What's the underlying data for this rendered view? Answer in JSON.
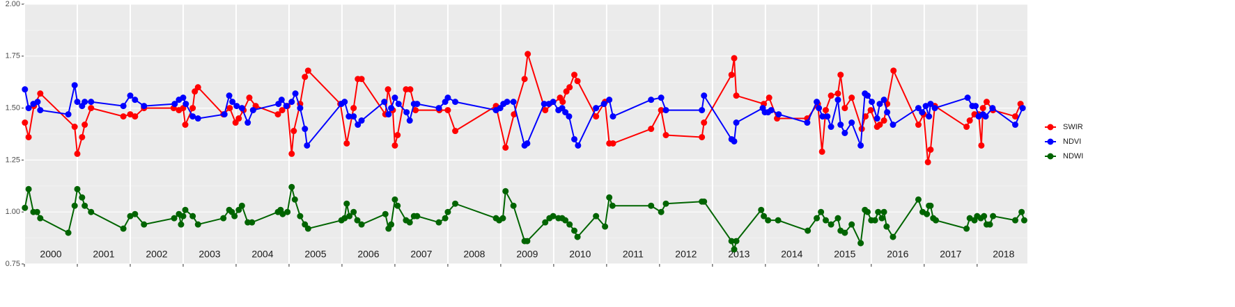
{
  "chart_data": {
    "type": "line",
    "xlim": [
      2000,
      2018.95
    ],
    "xticks": [
      2000,
      2001,
      2002,
      2003,
      2004,
      2005,
      2006,
      2007,
      2008,
      2009,
      2010,
      2011,
      2012,
      2013,
      2014,
      2015,
      2016,
      2017,
      2018
    ],
    "ylim": [
      0.75,
      2.0
    ],
    "yticks": [
      {
        "value": 0.75,
        "label": "0.75"
      },
      {
        "value": 1.0,
        "label": "1.00"
      },
      {
        "value": 1.25,
        "label": "1.25"
      },
      {
        "value": 1.5,
        "label": "1.50"
      },
      {
        "value": 1.75,
        "label": "1.75"
      },
      {
        "value": 2.0,
        "label": "2.00"
      }
    ],
    "grid": true,
    "legend": "right",
    "series": [
      {
        "name": "SWIR",
        "color": "#ff0000",
        "x": [
          2000.01,
          2000.08,
          2000.18,
          2000.3,
          2000.95,
          2001.0,
          2001.09,
          2001.14,
          2001.26,
          2001.87,
          2002.0,
          2002.09,
          2002.26,
          2002.82,
          2002.92,
          2003.0,
          2003.04,
          2003.18,
          2003.22,
          2003.28,
          2003.76,
          2003.88,
          2003.99,
          2004.05,
          2004.14,
          2004.25,
          2004.37,
          2004.79,
          2004.87,
          2004.97,
          2005.05,
          2005.09,
          2005.21,
          2005.3,
          2005.36,
          2005.97,
          2006.09,
          2006.22,
          2006.3,
          2006.37,
          2006.82,
          2006.87,
          2006.96,
          2007.0,
          2007.05,
          2007.21,
          2007.29,
          2007.39,
          2007.84,
          2008.0,
          2008.14,
          2008.91,
          2009.09,
          2009.25,
          2009.45,
          2009.51,
          2009.84,
          2010.12,
          2010.17,
          2010.24,
          2010.3,
          2010.39,
          2010.45,
          2010.8,
          2010.97,
          2011.05,
          2011.12,
          2011.84,
          2012.03,
          2012.12,
          2012.8,
          2012.84,
          2013.36,
          2013.41,
          2013.45,
          2013.97,
          2014.07,
          2014.22,
          2014.79,
          2014.99,
          2015.07,
          2015.14,
          2015.24,
          2015.37,
          2015.42,
          2015.5,
          2015.63,
          2015.82,
          2015.89,
          2015.99,
          2016.11,
          2016.16,
          2016.24,
          2016.3,
          2016.42,
          2016.89,
          2016.99,
          2017.07,
          2017.12,
          2017.2,
          2017.8,
          2017.86,
          2017.95,
          2018.03,
          2018.08,
          2018.11,
          2018.18,
          2018.3,
          2018.72,
          2018.82
        ],
        "values": [
          1.43,
          1.36,
          1.51,
          1.57,
          1.41,
          1.28,
          1.36,
          1.42,
          1.5,
          1.46,
          1.47,
          1.46,
          1.5,
          1.5,
          1.49,
          1.5,
          1.42,
          1.5,
          1.58,
          1.6,
          1.47,
          1.5,
          1.43,
          1.45,
          1.49,
          1.55,
          1.51,
          1.47,
          1.49,
          1.51,
          1.28,
          1.39,
          1.52,
          1.65,
          1.68,
          1.52,
          1.33,
          1.5,
          1.64,
          1.64,
          1.47,
          1.59,
          1.49,
          1.32,
          1.37,
          1.59,
          1.59,
          1.49,
          1.49,
          1.49,
          1.39,
          1.51,
          1.31,
          1.47,
          1.64,
          1.76,
          1.49,
          1.55,
          1.53,
          1.58,
          1.6,
          1.66,
          1.63,
          1.46,
          1.53,
          1.33,
          1.33,
          1.4,
          1.49,
          1.37,
          1.36,
          1.43,
          1.66,
          1.74,
          1.56,
          1.52,
          1.55,
          1.45,
          1.45,
          1.52,
          1.29,
          1.49,
          1.56,
          1.57,
          1.66,
          1.5,
          1.55,
          1.4,
          1.46,
          1.49,
          1.41,
          1.42,
          1.44,
          1.52,
          1.68,
          1.42,
          1.47,
          1.24,
          1.3,
          1.51,
          1.41,
          1.44,
          1.47,
          1.47,
          1.32,
          1.5,
          1.53,
          1.49,
          1.46,
          1.52
        ]
      },
      {
        "name": "NDVI",
        "color": "#0000ff",
        "x": [
          2000.01,
          2000.08,
          2000.17,
          2000.25,
          2000.3,
          2000.83,
          2000.95,
          2001.0,
          2001.09,
          2001.14,
          2001.26,
          2001.87,
          2002.0,
          2002.09,
          2002.26,
          2002.84,
          2002.92,
          2003.0,
          2003.05,
          2003.18,
          2003.28,
          2003.78,
          2003.87,
          2003.93,
          2004.01,
          2004.11,
          2004.22,
          2004.32,
          2004.8,
          2004.86,
          2004.95,
          2005.05,
          2005.12,
          2005.21,
          2005.3,
          2005.34,
          2005.99,
          2006.05,
          2006.13,
          2006.22,
          2006.3,
          2006.37,
          2006.8,
          2006.88,
          2006.93,
          2007.0,
          2007.07,
          2007.22,
          2007.28,
          2007.36,
          2007.42,
          2007.83,
          2007.95,
          2008.0,
          2008.14,
          2008.91,
          2008.99,
          2009.05,
          2009.12,
          2009.24,
          2009.45,
          2009.5,
          2009.82,
          2009.91,
          2009.99,
          2010.09,
          2010.16,
          2010.22,
          2010.29,
          2010.39,
          2010.46,
          2010.8,
          2010.95,
          2011.05,
          2011.12,
          2011.84,
          2012.03,
          2012.12,
          2012.8,
          2012.84,
          2013.36,
          2013.41,
          2013.45,
          2013.95,
          2013.99,
          2014.05,
          2014.11,
          2014.25,
          2014.79,
          2014.97,
          2015.01,
          2015.08,
          2015.17,
          2015.24,
          2015.37,
          2015.42,
          2015.5,
          2015.63,
          2015.8,
          2015.88,
          2015.93,
          2016.01,
          2016.11,
          2016.16,
          2016.24,
          2016.3,
          2016.41,
          2016.89,
          2016.96,
          2017.03,
          2017.09,
          2017.12,
          2017.2,
          2017.82,
          2017.91,
          2017.97,
          2018.03,
          2018.11,
          2018.16,
          2018.29,
          2018.72,
          2018.86
        ],
        "values": [
          1.59,
          1.5,
          1.52,
          1.53,
          1.49,
          1.47,
          1.61,
          1.53,
          1.51,
          1.53,
          1.53,
          1.51,
          1.56,
          1.54,
          1.51,
          1.52,
          1.54,
          1.55,
          1.52,
          1.46,
          1.45,
          1.47,
          1.56,
          1.53,
          1.51,
          1.5,
          1.43,
          1.49,
          1.52,
          1.54,
          1.51,
          1.53,
          1.57,
          1.5,
          1.4,
          1.32,
          1.52,
          1.53,
          1.46,
          1.46,
          1.42,
          1.44,
          1.53,
          1.47,
          1.5,
          1.55,
          1.52,
          1.48,
          1.44,
          1.52,
          1.52,
          1.5,
          1.53,
          1.55,
          1.53,
          1.49,
          1.5,
          1.52,
          1.53,
          1.53,
          1.32,
          1.33,
          1.52,
          1.52,
          1.53,
          1.49,
          1.5,
          1.48,
          1.46,
          1.35,
          1.32,
          1.5,
          1.52,
          1.54,
          1.46,
          1.54,
          1.55,
          1.49,
          1.49,
          1.56,
          1.35,
          1.34,
          1.43,
          1.5,
          1.48,
          1.48,
          1.49,
          1.47,
          1.43,
          1.53,
          1.5,
          1.46,
          1.46,
          1.41,
          1.54,
          1.42,
          1.38,
          1.43,
          1.32,
          1.57,
          1.56,
          1.53,
          1.45,
          1.52,
          1.54,
          1.48,
          1.42,
          1.5,
          1.48,
          1.51,
          1.46,
          1.52,
          1.5,
          1.55,
          1.51,
          1.51,
          1.46,
          1.47,
          1.46,
          1.5,
          1.42,
          1.5
        ]
      },
      {
        "name": "NDWI",
        "color": "#006400",
        "x": [
          2000.01,
          2000.08,
          2000.17,
          2000.24,
          2000.3,
          2000.83,
          2000.95,
          2001.0,
          2001.09,
          2001.14,
          2001.26,
          2001.87,
          2002.0,
          2002.09,
          2002.26,
          2002.83,
          2002.92,
          2002.96,
          2003.0,
          2003.04,
          2003.18,
          2003.28,
          2003.76,
          2003.87,
          2003.92,
          2003.97,
          2004.05,
          2004.11,
          2004.22,
          2004.3,
          2004.79,
          2004.84,
          2004.88,
          2004.97,
          2005.05,
          2005.11,
          2005.21,
          2005.3,
          2005.36,
          2005.99,
          2006.05,
          2006.09,
          2006.14,
          2006.22,
          2006.29,
          2006.37,
          2006.82,
          2006.88,
          2006.93,
          2007.0,
          2007.05,
          2007.21,
          2007.28,
          2007.36,
          2007.42,
          2007.83,
          2007.95,
          2008.0,
          2008.14,
          2008.91,
          2008.97,
          2009.04,
          2009.09,
          2009.24,
          2009.45,
          2009.5,
          2009.84,
          2009.92,
          2009.99,
          2010.09,
          2010.16,
          2010.22,
          2010.3,
          2010.39,
          2010.45,
          2010.8,
          2010.97,
          2011.05,
          2011.11,
          2011.84,
          2012.03,
          2012.12,
          2012.8,
          2012.84,
          2013.36,
          2013.41,
          2013.45,
          2013.92,
          2013.97,
          2014.05,
          2014.24,
          2014.8,
          2014.97,
          2015.05,
          2015.14,
          2015.24,
          2015.37,
          2015.42,
          2015.5,
          2015.63,
          2015.8,
          2015.88,
          2015.93,
          2016.0,
          2016.07,
          2016.13,
          2016.2,
          2016.24,
          2016.29,
          2016.41,
          2016.89,
          2016.97,
          2017.05,
          2017.09,
          2017.12,
          2017.17,
          2017.22,
          2017.8,
          2017.86,
          2017.95,
          2018.0,
          2018.07,
          2018.13,
          2018.18,
          2018.24,
          2018.3,
          2018.72,
          2018.84,
          2018.89
        ],
        "values": [
          1.02,
          1.11,
          1.0,
          1.0,
          0.97,
          0.9,
          1.03,
          1.11,
          1.07,
          1.03,
          1.0,
          0.92,
          0.98,
          0.99,
          0.94,
          0.97,
          0.99,
          0.94,
          0.98,
          1.01,
          0.98,
          0.94,
          0.97,
          1.01,
          1.0,
          0.98,
          1.01,
          1.03,
          0.95,
          0.95,
          1.0,
          1.01,
          0.99,
          1.0,
          1.12,
          1.06,
          0.98,
          0.94,
          0.92,
          0.96,
          0.97,
          1.04,
          0.98,
          1.0,
          0.96,
          0.94,
          0.99,
          0.92,
          0.94,
          1.06,
          1.03,
          0.96,
          0.95,
          0.98,
          0.98,
          0.95,
          0.97,
          1.0,
          1.04,
          0.97,
          0.96,
          0.97,
          1.1,
          1.03,
          0.86,
          0.86,
          0.95,
          0.97,
          0.98,
          0.97,
          0.97,
          0.96,
          0.94,
          0.91,
          0.88,
          0.98,
          0.93,
          1.07,
          1.03,
          1.03,
          1.0,
          1.04,
          1.05,
          1.05,
          0.86,
          0.82,
          0.86,
          1.01,
          0.98,
          0.96,
          0.96,
          0.91,
          0.97,
          1.0,
          0.96,
          0.94,
          0.97,
          0.91,
          0.9,
          0.94,
          0.85,
          1.01,
          1.0,
          0.96,
          0.96,
          1.0,
          0.97,
          1.0,
          0.93,
          0.88,
          1.06,
          1.0,
          0.99,
          1.03,
          1.03,
          0.97,
          0.96,
          0.92,
          0.97,
          0.96,
          0.98,
          0.97,
          0.98,
          0.94,
          0.94,
          0.98,
          0.96,
          1.0,
          0.96
        ]
      }
    ]
  }
}
